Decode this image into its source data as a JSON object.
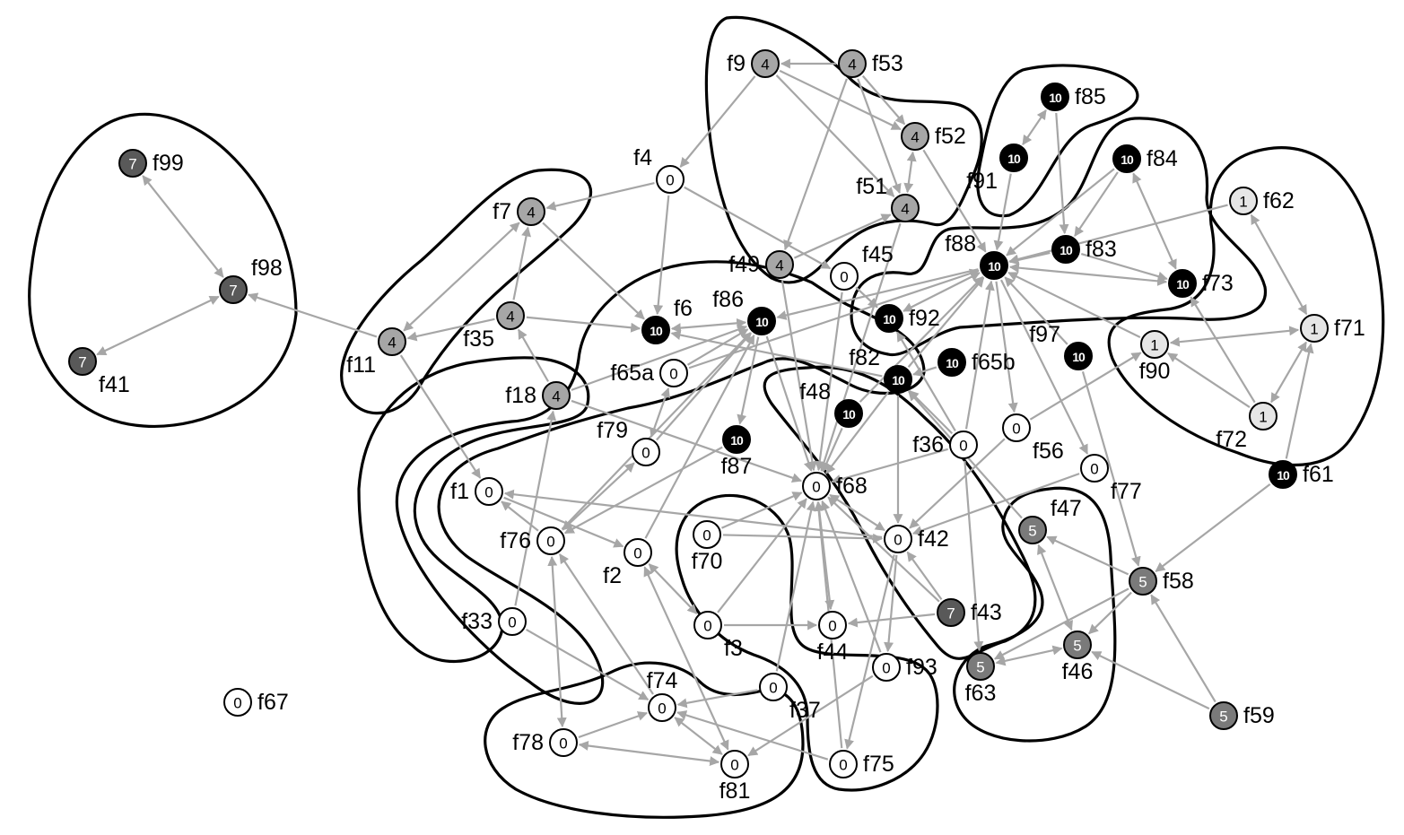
{
  "diagram": {
    "type": "directed-graph-with-regions",
    "level_colors": {
      "0": {
        "fill": "#ffffff",
        "text": "#000000"
      },
      "1": {
        "fill": "#e6e6e6",
        "text": "#000000"
      },
      "4": {
        "fill": "#a6a6a6",
        "text": "#000000"
      },
      "5": {
        "fill": "#7a7a7a",
        "text": "#ffffff"
      },
      "7": {
        "fill": "#595959",
        "text": "#ffffff"
      },
      "10": {
        "fill": "#000000",
        "text": "#ffffff"
      }
    },
    "nodes": [
      {
        "id": "f99",
        "label": "f99",
        "value": "7"
      },
      {
        "id": "f98",
        "label": "f98",
        "value": "7"
      },
      {
        "id": "f41",
        "label": "f41",
        "value": "7"
      },
      {
        "id": "f7",
        "label": "f7",
        "value": "4"
      },
      {
        "id": "f11",
        "label": "f11",
        "value": "4"
      },
      {
        "id": "f35",
        "label": "f35",
        "value": "4"
      },
      {
        "id": "f18",
        "label": "f18",
        "value": "4"
      },
      {
        "id": "f4",
        "label": "f4",
        "value": "0"
      },
      {
        "id": "f9",
        "label": "f9",
        "value": "4"
      },
      {
        "id": "f53",
        "label": "f53",
        "value": "4"
      },
      {
        "id": "f52",
        "label": "f52",
        "value": "4"
      },
      {
        "id": "f51",
        "label": "f51",
        "value": "4"
      },
      {
        "id": "f49",
        "label": "f49",
        "value": "4"
      },
      {
        "id": "f45",
        "label": "f45",
        "value": "0"
      },
      {
        "id": "f6",
        "label": "f6",
        "value": "10"
      },
      {
        "id": "f86",
        "label": "f86",
        "value": "10"
      },
      {
        "id": "f65a",
        "label": "f65a",
        "value": "0"
      },
      {
        "id": "f85",
        "label": "f85",
        "value": "10"
      },
      {
        "id": "f91",
        "label": "f91",
        "value": "10"
      },
      {
        "id": "f84",
        "label": "f84",
        "value": "10"
      },
      {
        "id": "f83",
        "label": "f83",
        "value": "10"
      },
      {
        "id": "f88",
        "label": "f88",
        "value": "10"
      },
      {
        "id": "f73",
        "label": "f73",
        "value": "10"
      },
      {
        "id": "f92",
        "label": "f92",
        "value": "10"
      },
      {
        "id": "f62",
        "label": "f62",
        "value": "1"
      },
      {
        "id": "f71",
        "label": "f71",
        "value": "1"
      },
      {
        "id": "f90",
        "label": "f90",
        "value": "1"
      },
      {
        "id": "f72",
        "label": "f72",
        "value": "1"
      },
      {
        "id": "f97",
        "label": "f97",
        "value": "10"
      },
      {
        "id": "f65b",
        "label": "f65b",
        "value": "10"
      },
      {
        "id": "f82",
        "label": "f82",
        "value": "10"
      },
      {
        "id": "f48",
        "label": "f48",
        "value": "10"
      },
      {
        "id": "f87",
        "label": "f87",
        "value": "10"
      },
      {
        "id": "f79",
        "label": "f79",
        "value": "0"
      },
      {
        "id": "f36",
        "label": "f36",
        "value": "0"
      },
      {
        "id": "f56",
        "label": "f56",
        "value": "0"
      },
      {
        "id": "f77",
        "label": "f77",
        "value": "0"
      },
      {
        "id": "f61",
        "label": "f61",
        "value": "10"
      },
      {
        "id": "f1",
        "label": "f1",
        "value": "0"
      },
      {
        "id": "f68",
        "label": "f68",
        "value": "0"
      },
      {
        "id": "f76",
        "label": "f76",
        "value": "0"
      },
      {
        "id": "f2",
        "label": "f2",
        "value": "0"
      },
      {
        "id": "f70",
        "label": "f70",
        "value": "0"
      },
      {
        "id": "f42",
        "label": "f42",
        "value": "0"
      },
      {
        "id": "f47",
        "label": "f47",
        "value": "5"
      },
      {
        "id": "f58",
        "label": "f58",
        "value": "5"
      },
      {
        "id": "f33",
        "label": "f33",
        "value": "0"
      },
      {
        "id": "f3",
        "label": "f3",
        "value": "0"
      },
      {
        "id": "f44",
        "label": "f44",
        "value": "0"
      },
      {
        "id": "f43",
        "label": "f43",
        "value": "7"
      },
      {
        "id": "f46",
        "label": "f46",
        "value": "5"
      },
      {
        "id": "f63",
        "label": "f63",
        "value": "5"
      },
      {
        "id": "f93",
        "label": "f93",
        "value": "0"
      },
      {
        "id": "f74",
        "label": "f74",
        "value": "0"
      },
      {
        "id": "f37",
        "label": "f37",
        "value": "0"
      },
      {
        "id": "f67",
        "label": "f67",
        "value": "0"
      },
      {
        "id": "f59",
        "label": "f59",
        "value": "5"
      },
      {
        "id": "f78",
        "label": "f78",
        "value": "0"
      },
      {
        "id": "f81",
        "label": "f81",
        "value": "0"
      },
      {
        "id": "f75",
        "label": "f75",
        "value": "0"
      }
    ],
    "edges": [
      {
        "from": "f98",
        "to": "f99",
        "both": true
      },
      {
        "from": "f98",
        "to": "f41",
        "both": true
      },
      {
        "from": "f11",
        "to": "f98",
        "both": false
      },
      {
        "from": "f11",
        "to": "f7",
        "both": true
      },
      {
        "from": "f35",
        "to": "f11",
        "both": false
      },
      {
        "from": "f35",
        "to": "f7",
        "both": false
      },
      {
        "from": "f35",
        "to": "f6",
        "both": false
      },
      {
        "from": "f18",
        "to": "f35",
        "both": false
      },
      {
        "from": "f11",
        "to": "f1",
        "both": false
      },
      {
        "from": "f4",
        "to": "f7",
        "both": false
      },
      {
        "from": "f4",
        "to": "f6",
        "both": false
      },
      {
        "from": "f4",
        "to": "f45",
        "both": false
      },
      {
        "from": "f7",
        "to": "f6",
        "both": false
      },
      {
        "from": "f9",
        "to": "f4",
        "both": false
      },
      {
        "from": "f9",
        "to": "f52",
        "both": false
      },
      {
        "from": "f53",
        "to": "f9",
        "both": false
      },
      {
        "from": "f53",
        "to": "f52",
        "both": false
      },
      {
        "from": "f53",
        "to": "f51",
        "both": false
      },
      {
        "from": "f53",
        "to": "f49",
        "both": false
      },
      {
        "from": "f52",
        "to": "f51",
        "both": true
      },
      {
        "from": "f9",
        "to": "f51",
        "both": false
      },
      {
        "from": "f49",
        "to": "f51",
        "both": false
      },
      {
        "from": "f52",
        "to": "f88",
        "both": false
      },
      {
        "from": "f49",
        "to": "f68",
        "both": false
      },
      {
        "from": "f51",
        "to": "f68",
        "both": false
      },
      {
        "from": "f18",
        "to": "f86",
        "both": false
      },
      {
        "from": "f6",
        "to": "f86",
        "both": true
      },
      {
        "from": "f82",
        "to": "f6",
        "both": false
      },
      {
        "from": "f88",
        "to": "f86",
        "both": false
      },
      {
        "from": "f86",
        "to": "f87",
        "both": false
      },
      {
        "from": "f65a",
        "to": "f86",
        "both": false
      },
      {
        "from": "f79",
        "to": "f86",
        "both": false
      },
      {
        "from": "f76",
        "to": "f86",
        "both": false
      },
      {
        "from": "f2",
        "to": "f86",
        "both": false
      },
      {
        "from": "f86",
        "to": "f68",
        "both": false
      },
      {
        "from": "f91",
        "to": "f85",
        "both": true
      },
      {
        "from": "f91",
        "to": "f88",
        "both": false
      },
      {
        "from": "f85",
        "to": "f83",
        "both": false
      },
      {
        "from": "f84",
        "to": "f88",
        "both": false
      },
      {
        "from": "f84",
        "to": "f73",
        "both": true
      },
      {
        "from": "f84",
        "to": "f83",
        "both": false
      },
      {
        "from": "f83",
        "to": "f88",
        "both": false
      },
      {
        "from": "f83",
        "to": "f73",
        "both": false
      },
      {
        "from": "f88",
        "to": "f73",
        "both": true
      },
      {
        "from": "f88",
        "to": "f92",
        "both": true
      },
      {
        "from": "f62",
        "to": "f88",
        "both": false
      },
      {
        "from": "f62",
        "to": "f71",
        "both": true
      },
      {
        "from": "f71",
        "to": "f90",
        "both": true
      },
      {
        "from": "f72",
        "to": "f90",
        "both": false
      },
      {
        "from": "f72",
        "to": "f71",
        "both": true
      },
      {
        "from": "f61",
        "to": "f71",
        "both": false
      },
      {
        "from": "f72",
        "to": "f73",
        "both": false
      },
      {
        "from": "f90",
        "to": "f88",
        "both": false
      },
      {
        "from": "f61",
        "to": "f58",
        "both": false
      },
      {
        "from": "f97",
        "to": "f88",
        "both": false
      },
      {
        "from": "f97",
        "to": "f58",
        "both": false
      },
      {
        "from": "f65b",
        "to": "f82",
        "both": false
      },
      {
        "from": "f82",
        "to": "f88",
        "both": false
      },
      {
        "from": "f82",
        "to": "f68",
        "both": false
      },
      {
        "from": "f82",
        "to": "f42",
        "both": false
      },
      {
        "from": "f48",
        "to": "f88",
        "both": false
      },
      {
        "from": "f48",
        "to": "f68",
        "both": false
      },
      {
        "from": "f87",
        "to": "f76",
        "both": false
      },
      {
        "from": "f36",
        "to": "f88",
        "both": false
      },
      {
        "from": "f36",
        "to": "f68",
        "both": false
      },
      {
        "from": "f36",
        "to": "f82",
        "both": false
      },
      {
        "from": "f56",
        "to": "f90",
        "both": false
      },
      {
        "from": "f56",
        "to": "f42",
        "both": false
      },
      {
        "from": "f88",
        "to": "f56",
        "both": false
      },
      {
        "from": "f77",
        "to": "f42",
        "both": false
      },
      {
        "from": "f88",
        "to": "f77",
        "both": false
      },
      {
        "from": "f1",
        "to": "f2",
        "both": false
      },
      {
        "from": "f42",
        "to": "f1",
        "both": false
      },
      {
        "from": "f76",
        "to": "f1",
        "both": false
      },
      {
        "from": "f76",
        "to": "f79",
        "both": true
      },
      {
        "from": "f65a",
        "to": "f79",
        "both": true
      },
      {
        "from": "f18",
        "to": "f68",
        "both": false
      },
      {
        "from": "f70",
        "to": "f68",
        "both": false
      },
      {
        "from": "f70",
        "to": "f42",
        "both": false
      },
      {
        "from": "f3",
        "to": "f68",
        "both": false
      },
      {
        "from": "f44",
        "to": "f68",
        "both": true
      },
      {
        "from": "f68",
        "to": "f42",
        "both": true
      },
      {
        "from": "f43",
        "to": "f68",
        "both": false
      },
      {
        "from": "f43",
        "to": "f44",
        "both": false
      },
      {
        "from": "f43",
        "to": "f42",
        "both": false
      },
      {
        "from": "f47",
        "to": "f46",
        "both": true
      },
      {
        "from": "f58",
        "to": "f47",
        "both": false
      },
      {
        "from": "f58",
        "to": "f46",
        "both": false
      },
      {
        "from": "f59",
        "to": "f58",
        "both": false
      },
      {
        "from": "f59",
        "to": "f46",
        "both": false
      },
      {
        "from": "f46",
        "to": "f63",
        "both": true
      },
      {
        "from": "f58",
        "to": "f63",
        "both": false
      },
      {
        "from": "f47",
        "to": "f82",
        "both": false
      },
      {
        "from": "f36",
        "to": "f63",
        "both": false
      },
      {
        "from": "f33",
        "to": "f18",
        "both": false
      },
      {
        "from": "f33",
        "to": "f74",
        "both": false
      },
      {
        "from": "f3",
        "to": "f44",
        "both": false
      },
      {
        "from": "f2",
        "to": "f3",
        "both": true
      },
      {
        "from": "f37",
        "to": "f68",
        "both": false
      },
      {
        "from": "f37",
        "to": "f74",
        "both": false
      },
      {
        "from": "f93",
        "to": "f68",
        "both": false
      },
      {
        "from": "f42",
        "to": "f93",
        "both": false
      },
      {
        "from": "f42",
        "to": "f75",
        "both": false
      },
      {
        "from": "f75",
        "to": "f68",
        "both": false
      },
      {
        "from": "f75",
        "to": "f74",
        "both": false
      },
      {
        "from": "f74",
        "to": "f76",
        "both": false
      },
      {
        "from": "f78",
        "to": "f74",
        "both": false
      },
      {
        "from": "f78",
        "to": "f81",
        "both": true
      },
      {
        "from": "f74",
        "to": "f81",
        "both": true
      },
      {
        "from": "f2",
        "to": "f81",
        "both": true
      },
      {
        "from": "f76",
        "to": "f78",
        "both": true
      },
      {
        "from": "f93",
        "to": "f81",
        "both": false
      },
      {
        "from": "f45",
        "to": "f68",
        "both": false
      },
      {
        "from": "f45",
        "to": "f92",
        "both": false
      },
      {
        "from": "f65a",
        "to": "f88",
        "both": false
      },
      {
        "from": "f36",
        "to": "f92",
        "both": false
      }
    ]
  }
}
